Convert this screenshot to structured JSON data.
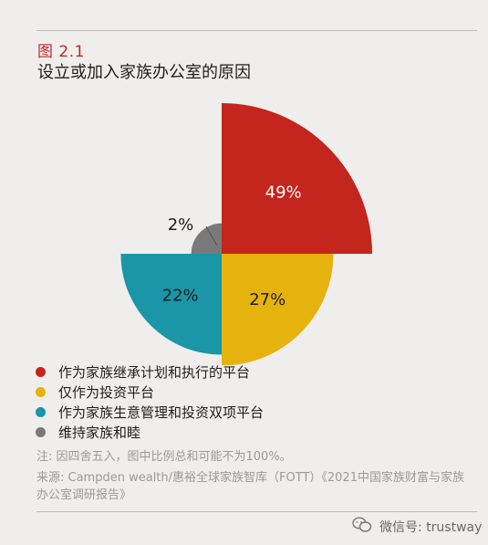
{
  "figure": {
    "label": "图 2.1",
    "title": "设立或加入家族办公室的原因"
  },
  "chart_data": {
    "type": "pie",
    "series": [
      {
        "name": "作为家族继承计划和执行的平台",
        "value": 49,
        "label": "49%",
        "color": "#c4251d"
      },
      {
        "name": "仅作为投资平台",
        "value": 27,
        "label": "27%",
        "color": "#e6b30e"
      },
      {
        "name": "作为家族生意管理和投资双项平台",
        "value": 22,
        "label": "22%",
        "color": "#1a96a8"
      },
      {
        "name": "维持家族和睦",
        "value": 2,
        "label": "2%",
        "color": "#7a7a7a"
      }
    ]
  },
  "legend": [
    {
      "label": "作为家族继承计划和执行的平台",
      "color": "#c4251d"
    },
    {
      "label": "仅作为投资平台",
      "color": "#e6b30e"
    },
    {
      "label": "作为家族生意管理和投资双项平台",
      "color": "#1a96a8"
    },
    {
      "label": "维持家族和睦",
      "color": "#7a7a7a"
    }
  ],
  "note": "注: 因四舍五入，图中比例总和可能不为100%。",
  "source": "来源: Campden wealth/惠裕全球家族智库（FOTT）《2021中国家族财富与家族办公室调研报告》",
  "watermark": {
    "icon": "wechat-icon",
    "text": "微信号: trustway"
  }
}
